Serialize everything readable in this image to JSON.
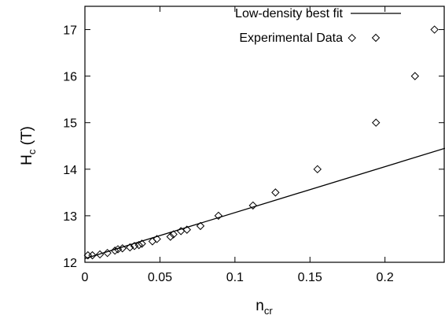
{
  "chart_data": {
    "type": "scatter",
    "xlabel": "n",
    "xlabel_sub": "cr",
    "ylabel": "H",
    "ylabel_sub": "c",
    "ylabel_suffix": " (T)",
    "xlim": [
      0,
      0.24
    ],
    "ylim": [
      12,
      17.5
    ],
    "xticks": [
      0,
      0.05,
      0.1,
      0.15,
      0.2
    ],
    "xtick_labels": [
      "0",
      "0.05",
      "0.1",
      "0.15",
      "0.2"
    ],
    "yticks": [
      12,
      13,
      14,
      15,
      16,
      17
    ],
    "ytick_labels": [
      "12",
      "13",
      "14",
      "15",
      "16",
      "17"
    ],
    "grid": false,
    "legend_position": "top-right",
    "series": [
      {
        "name": "Low-density best fit",
        "kind": "line",
        "x": [
          0,
          0.24
        ],
        "y": [
          12.08,
          14.45
        ]
      },
      {
        "name": "Experimental Data",
        "kind": "scatter",
        "marker": "diamond",
        "x": [
          0.002,
          0.005,
          0.01,
          0.015,
          0.02,
          0.022,
          0.025,
          0.03,
          0.033,
          0.036,
          0.038,
          0.045,
          0.048,
          0.057,
          0.059,
          0.064,
          0.068,
          0.077,
          0.089,
          0.112,
          0.127,
          0.155,
          0.178,
          0.194,
          0.22,
          0.233
        ],
        "y": [
          12.15,
          12.15,
          12.17,
          12.2,
          12.25,
          12.28,
          12.3,
          12.32,
          12.35,
          12.37,
          12.4,
          12.45,
          12.5,
          12.55,
          12.6,
          12.67,
          12.7,
          12.78,
          13.0,
          13.22,
          13.5,
          14.0,
          16.82,
          15.0,
          16.0,
          17.0
        ]
      }
    ]
  }
}
